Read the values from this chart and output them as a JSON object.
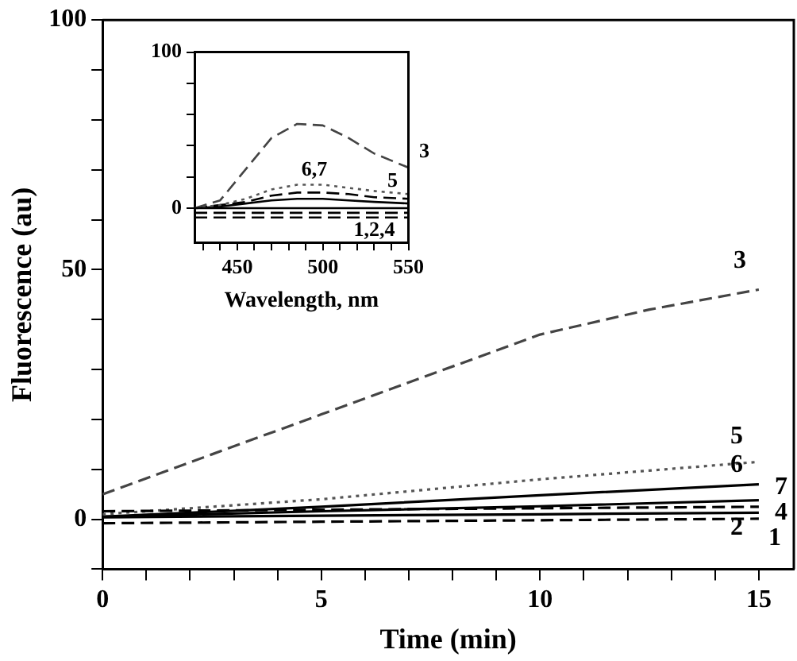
{
  "chart_data": [
    {
      "type": "line",
      "xlabel": "Time (min)",
      "ylabel": "Fluorescence (au)",
      "x": [
        0,
        5,
        10,
        15
      ],
      "xlim": [
        0,
        15.8
      ],
      "ylim": [
        -10,
        100
      ],
      "xticks": [
        0,
        {
          "value": 1,
          "label": null
        },
        {
          "value": 2,
          "label": null
        },
        {
          "value": 3,
          "label": null
        },
        {
          "value": 4,
          "label": null
        },
        5,
        {
          "value": 6,
          "label": null
        },
        {
          "value": 7,
          "label": null
        },
        {
          "value": 8,
          "label": null
        },
        {
          "value": 9,
          "label": null
        },
        10,
        {
          "value": 11,
          "label": null
        },
        {
          "value": 12,
          "label": null
        },
        {
          "value": 13,
          "label": null
        },
        {
          "value": 14,
          "label": null
        },
        15
      ],
      "yticks": [
        {
          "value": -10,
          "label": null
        },
        0,
        {
          "value": 10,
          "label": null
        },
        {
          "value": 20,
          "label": null
        },
        {
          "value": 30,
          "label": null
        },
        {
          "value": 40,
          "label": null
        },
        50,
        {
          "value": 60,
          "label": null
        },
        {
          "value": 70,
          "label": null
        },
        {
          "value": 80,
          "label": null
        },
        {
          "value": 90,
          "label": null
        },
        100
      ],
      "grid": false,
      "legend": false,
      "marker": "none",
      "series": [
        {
          "name": "1",
          "color": "#000000",
          "line_style": "solid",
          "values": [
            0.4,
            0.7,
            1.0,
            1.3
          ]
        },
        {
          "name": "2",
          "color": "#000000",
          "line_style": "dashed",
          "values": [
            -0.8,
            -0.5,
            -0.2,
            0.1
          ]
        },
        {
          "name": "3",
          "color": "#444444",
          "line_style": "dashed",
          "x": [
            0,
            2.5,
            5,
            7.5,
            10,
            12.5,
            15
          ],
          "values": [
            5,
            13,
            21,
            29,
            37,
            42,
            46
          ]
        },
        {
          "name": "4",
          "color": "#000000",
          "line_style": "dashed",
          "values": [
            1.6,
            1.9,
            2.2,
            2.5
          ]
        },
        {
          "name": "5",
          "color": "#555555",
          "line_style": "dotted",
          "values": [
            1,
            4,
            8,
            11.5
          ]
        },
        {
          "name": "6",
          "color": "#000000",
          "line_style": "solid",
          "values": [
            0.5,
            2.5,
            4.8,
            7
          ]
        },
        {
          "name": "7",
          "color": "#000000",
          "line_style": "solid",
          "values": [
            0.5,
            1.6,
            2.6,
            3.8
          ]
        }
      ]
    },
    {
      "type": "line",
      "xlabel": "Wavelength, nm",
      "x": [
        425,
        440,
        455,
        470,
        485,
        500,
        515,
        530,
        550
      ],
      "xlim": [
        425,
        550
      ],
      "ylim": [
        -22,
        100
      ],
      "xticks": [
        {
          "value": 430,
          "label": null
        },
        {
          "value": 440,
          "label": null
        },
        450,
        {
          "value": 460,
          "label": null
        },
        {
          "value": 470,
          "label": null
        },
        {
          "value": 480,
          "label": null
        },
        {
          "value": 490,
          "label": null
        },
        500,
        {
          "value": 510,
          "label": null
        },
        {
          "value": 520,
          "label": null
        },
        {
          "value": 530,
          "label": null
        },
        {
          "value": 540,
          "label": null
        },
        550
      ],
      "yticks": [
        0,
        {
          "value": 20,
          "label": null
        },
        {
          "value": 40,
          "label": null
        },
        {
          "value": 60,
          "label": null
        },
        {
          "value": 80,
          "label": null
        },
        100
      ],
      "grid": false,
      "legend": false,
      "marker": "none",
      "annotations": [
        {
          "text": "6,7",
          "x": 495,
          "y": 8
        },
        {
          "text": "1,2,4",
          "x": 530,
          "y": 0
        }
      ],
      "series": [
        {
          "color": "#000000",
          "line_style": "solid",
          "values": [
            0,
            0,
            0,
            0,
            0,
            0,
            0,
            0,
            0
          ]
        },
        {
          "color": "#000000",
          "line_style": "dashed",
          "values": [
            -3,
            -3,
            -3,
            -3,
            -3,
            -3,
            -3,
            -3,
            -3
          ]
        },
        {
          "name": "3",
          "color": "#444444",
          "line_style": "dashed",
          "values": [
            0,
            5,
            25,
            45,
            54,
            53,
            45,
            35,
            26
          ]
        },
        {
          "color": "#000000",
          "line_style": "dashed",
          "values": [
            -6,
            -6,
            -6,
            -6,
            -6,
            -6,
            -6,
            -6,
            -6
          ]
        },
        {
          "name": "5",
          "color": "#555555",
          "line_style": "dotted",
          "values": [
            0,
            2,
            6,
            12,
            15,
            15,
            13,
            11,
            9
          ]
        },
        {
          "color": "#000000",
          "line_style": "dashed",
          "values": [
            0,
            2,
            4,
            8,
            10,
            10,
            9,
            7,
            6
          ]
        },
        {
          "color": "#000000",
          "line_style": "solid",
          "values": [
            0,
            1,
            3,
            5,
            6,
            6,
            5,
            4,
            3
          ]
        }
      ]
    }
  ]
}
